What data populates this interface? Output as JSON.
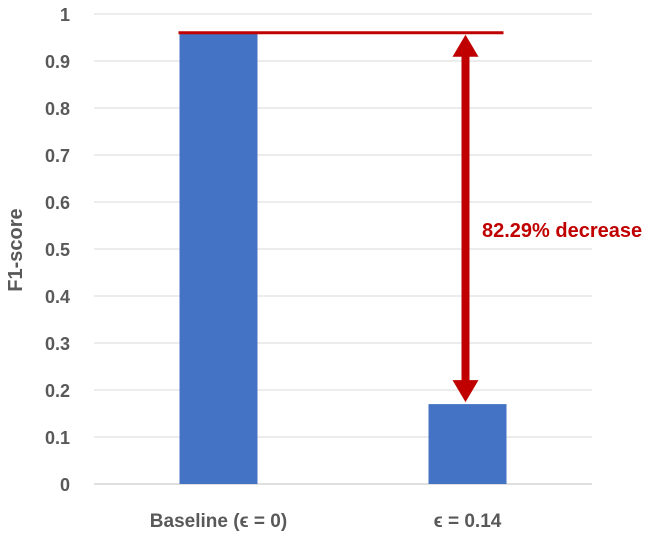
{
  "chart_data": {
    "type": "bar",
    "categories": [
      "Baseline (ϵ = 0)",
      "ϵ = 0.14"
    ],
    "values": [
      0.96,
      0.17
    ],
    "ylabel": "F1-score",
    "xlabel": "",
    "ylim": [
      0,
      1
    ],
    "yticks": [
      "0",
      "0.1",
      "0.2",
      "0.3",
      "0.4",
      "0.5",
      "0.6",
      "0.7",
      "0.8",
      "0.9",
      "1"
    ],
    "grid": true,
    "bar_color": "#4472c4",
    "annotation": {
      "text": "82.29% decrease",
      "from_value": 0.96,
      "to_value": 0.17,
      "color": "#c00000"
    }
  }
}
